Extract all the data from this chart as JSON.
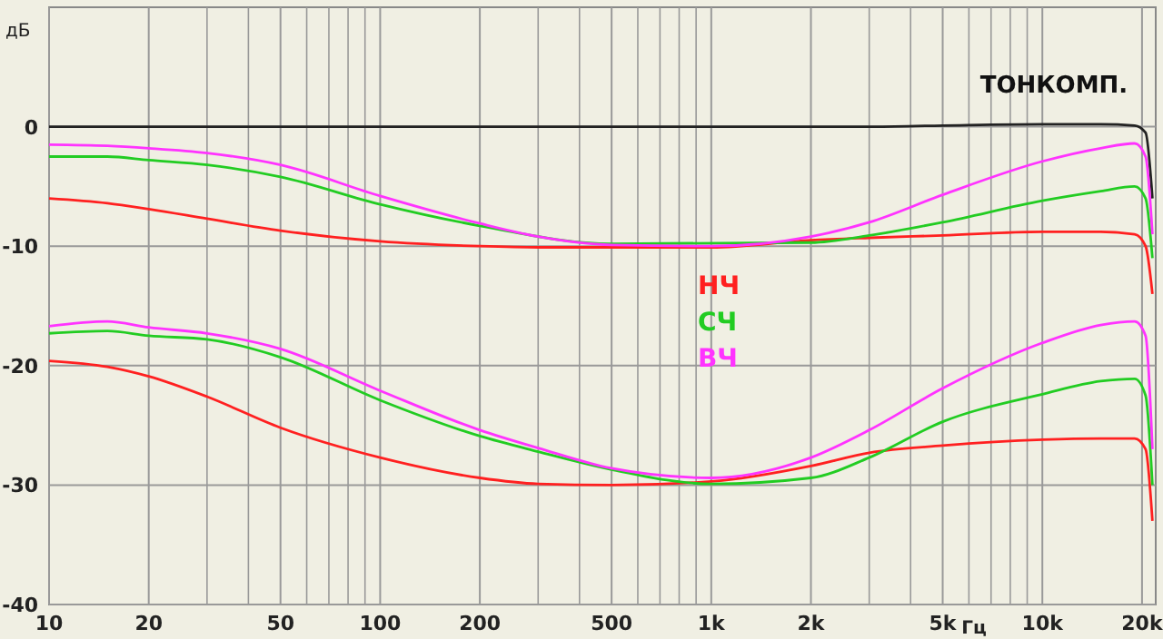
{
  "chart_data": {
    "type": "line",
    "title": "ТОНКОМП.",
    "xlabel": "Гц",
    "ylabel": "дБ",
    "log": "x",
    "grid": true,
    "legend": "center",
    "line_style": "solid",
    "marker": "none",
    "x": [
      10,
      15,
      20,
      30,
      50,
      100,
      200,
      300,
      500,
      1000,
      2000,
      3000,
      5000,
      10000,
      15000,
      19000,
      20500,
      21500
    ],
    "series": [
      {
        "color": "#222222",
        "values": [
          0,
          0,
          0,
          0,
          0,
          0,
          0,
          0,
          0,
          0,
          0,
          0,
          0.1,
          0.2,
          0.2,
          0.1,
          -0.5,
          -6
        ]
      },
      {
        "name": "НЧ",
        "color": "#ff2020",
        "values": [
          -6.0,
          -6.4,
          -6.9,
          -7.7,
          -8.7,
          -9.6,
          -10.0,
          -10.1,
          -10.1,
          -10.1,
          -9.5,
          -9.3,
          -9.1,
          -8.8,
          -8.8,
          -9.0,
          -10,
          -14
        ]
      },
      {
        "name": "СЧ",
        "color": "#22cc22",
        "values": [
          -2.5,
          -2.5,
          -2.8,
          -3.2,
          -4.2,
          -6.5,
          -8.3,
          null,
          -9.8,
          null,
          -9.7,
          -9.1,
          -8.0,
          -6.2,
          -5.4,
          -5.0,
          -6,
          -11
        ]
      },
      {
        "name": "ВЧ",
        "color": "#ff33ff",
        "values": [
          -1.5,
          -1.6,
          -1.8,
          -2.2,
          -3.2,
          -5.8,
          -8.1,
          -9.2,
          -9.9,
          -10,
          -9.2,
          -8.0,
          -5.7,
          -2.9,
          -1.8,
          -1.4,
          -2.5,
          -9
        ]
      },
      {
        "color": "#ff2020",
        "values": [
          -19.6,
          -20.1,
          -20.9,
          -22.6,
          -25.2,
          -27.7,
          -29.4,
          -29.9,
          -30.0,
          -29.7,
          -28.4,
          -27.3,
          -26.7,
          -26.2,
          -26.1,
          -26.1,
          -27,
          -33
        ]
      },
      {
        "color": "#22cc22",
        "values": [
          -17.3,
          -17.1,
          -17.5,
          -17.8,
          -19.3,
          -22.9,
          -25.9,
          -27.2,
          -28.7,
          -29.9,
          -29.4,
          -27.7,
          -24.7,
          -22.4,
          -21.3,
          -21.1,
          -22.5,
          -30
        ]
      },
      {
        "color": "#ff33ff",
        "values": [
          -16.7,
          -16.3,
          -16.8,
          -17.3,
          -18.6,
          -22.1,
          -25.4,
          -26.9,
          -28.6,
          -29.4,
          -27.7,
          -25.4,
          -21.9,
          -18.1,
          -16.6,
          -16.3,
          -17.5,
          -27
        ]
      }
    ],
    "xlim": [
      10,
      22000
    ],
    "xticks": [
      10,
      20,
      {
        "value": 30,
        "label": null
      },
      {
        "value": 40,
        "label": null
      },
      50,
      {
        "value": 60,
        "label": null
      },
      {
        "value": 70,
        "label": null
      },
      {
        "value": 80,
        "label": null
      },
      {
        "value": 90,
        "label": null
      },
      100,
      200,
      {
        "value": 300,
        "label": null
      },
      {
        "value": 400,
        "label": null
      },
      500,
      {
        "value": 600,
        "label": null
      },
      {
        "value": 700,
        "label": null
      },
      {
        "value": 800,
        "label": null
      },
      {
        "value": 900,
        "label": null
      },
      {
        "value": 1000,
        "label": "1k"
      },
      {
        "value": 2000,
        "label": "2k"
      },
      {
        "value": 3000,
        "label": null
      },
      {
        "value": 4000,
        "label": null
      },
      {
        "value": 5000,
        "label": "5k"
      },
      {
        "value": 6000,
        "label": null
      },
      {
        "value": 7000,
        "label": null
      },
      {
        "value": 8000,
        "label": null
      },
      {
        "value": 9000,
        "label": null
      },
      {
        "value": 10000,
        "label": "10k"
      },
      {
        "value": 20000,
        "label": "20k"
      }
    ],
    "ylim": [
      -40,
      10
    ],
    "yticks": [
      -40,
      -30,
      -20,
      -10,
      0
    ]
  }
}
